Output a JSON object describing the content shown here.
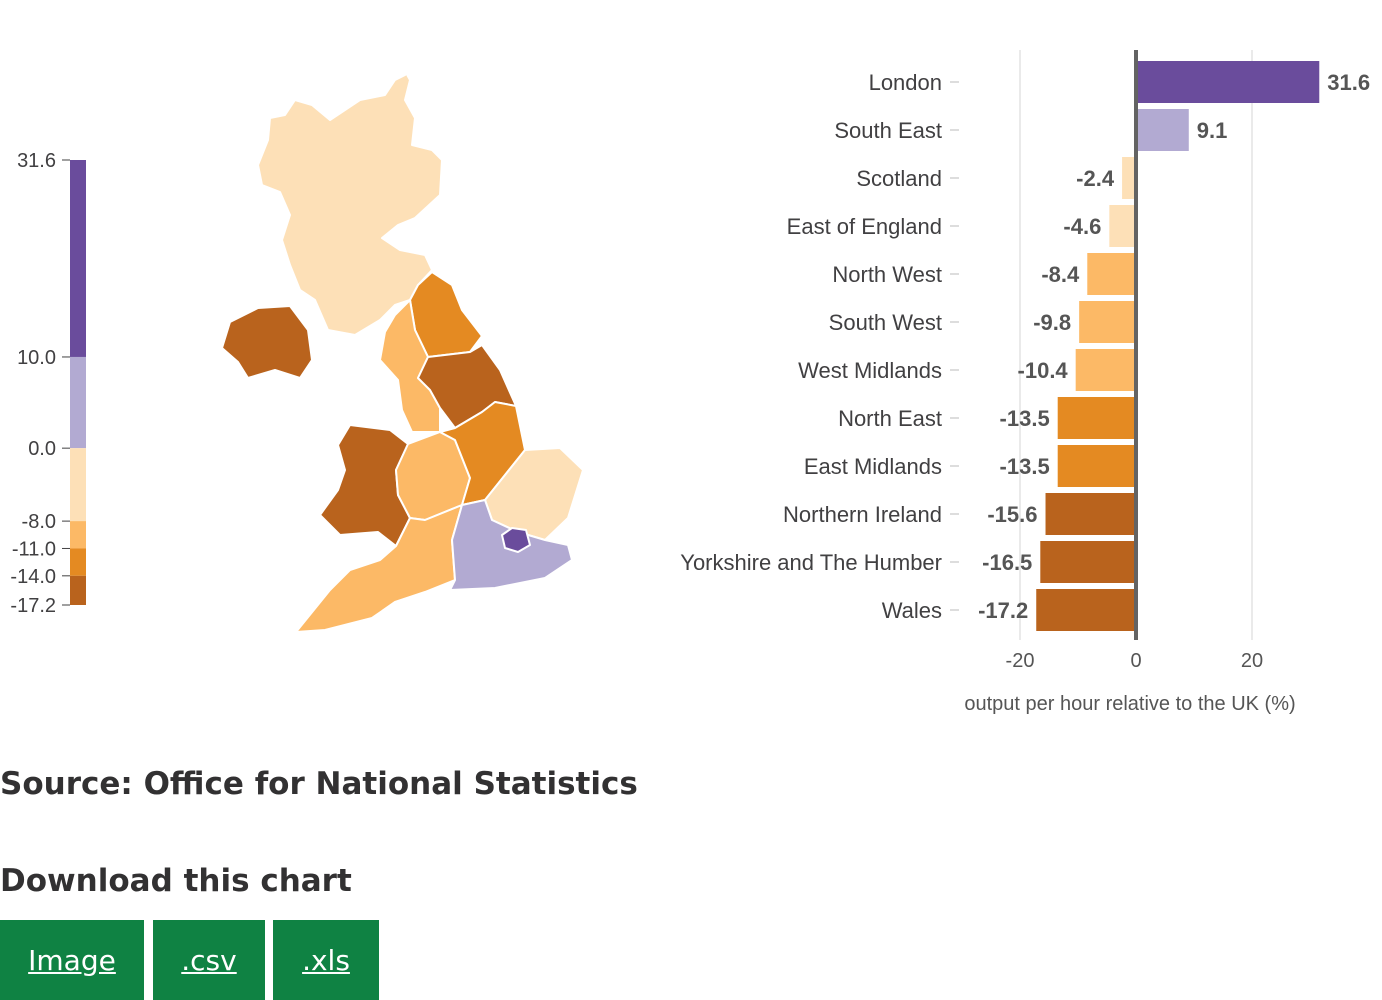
{
  "chart_data": [
    {
      "type": "map",
      "color_scale": {
        "breaks": [
          31.6,
          10.0,
          0.0,
          -8.0,
          -11.0,
          -14.0,
          -17.2
        ],
        "labels": [
          "31.6",
          "10.0",
          "0.0",
          "-8.0",
          "-11.0",
          "-14.0",
          "-17.2"
        ],
        "colors": [
          "#6a4c9c",
          "#b2aad2",
          "#fde0b7",
          "#fcb966",
          "#e48a22",
          "#b9631d"
        ]
      },
      "regions": [
        {
          "name": "Scotland",
          "color": "#fde0b7"
        },
        {
          "name": "Northern Ireland",
          "color": "#b9631d"
        },
        {
          "name": "North East",
          "color": "#e48a22"
        },
        {
          "name": "North West",
          "color": "#fcb966"
        },
        {
          "name": "Yorkshire and The Humber",
          "color": "#b9631d"
        },
        {
          "name": "Wales",
          "color": "#b9631d"
        },
        {
          "name": "West Midlands",
          "color": "#fcb966"
        },
        {
          "name": "East Midlands",
          "color": "#e48a22"
        },
        {
          "name": "East of England",
          "color": "#fde0b7"
        },
        {
          "name": "South West",
          "color": "#fcb966"
        },
        {
          "name": "South East",
          "color": "#b2aad2"
        },
        {
          "name": "London",
          "color": "#6a4c9c"
        }
      ]
    },
    {
      "type": "bar",
      "orientation": "horizontal",
      "categories": [
        "London",
        "South East",
        "Scotland",
        "East of England",
        "North West",
        "South West",
        "West Midlands",
        "North East",
        "East Midlands",
        "Northern Ireland",
        "Yorkshire and The Humber",
        "Wales"
      ],
      "values": [
        31.6,
        9.1,
        -2.4,
        -4.6,
        -8.4,
        -9.8,
        -10.4,
        -13.5,
        -13.5,
        -15.6,
        -16.5,
        -17.2
      ],
      "value_labels": [
        "31.6",
        "9.1",
        "-2.4",
        "-4.6",
        "-8.4",
        "-9.8",
        "-10.4",
        "-13.5",
        "-13.5",
        "-15.6",
        "-16.5",
        "-17.2"
      ],
      "colors": [
        "#6a4c9c",
        "#b2aad2",
        "#fde0b7",
        "#fde0b7",
        "#fcb966",
        "#fcb966",
        "#fcb966",
        "#e48a22",
        "#e48a22",
        "#b9631d",
        "#b9631d",
        "#b9631d"
      ],
      "xlabel": "output per hour relative to the UK (%)",
      "xlim": [
        -20,
        32
      ],
      "xticks": [
        -20,
        0,
        20
      ],
      "xtick_labels": [
        "-20",
        "0",
        "20"
      ],
      "grid": true
    }
  ],
  "source": "Source: Office for National Statistics",
  "download": {
    "title": "Download this chart",
    "buttons": [
      {
        "label": "Image"
      },
      {
        "label": ".csv"
      },
      {
        "label": ".xls"
      }
    ]
  }
}
